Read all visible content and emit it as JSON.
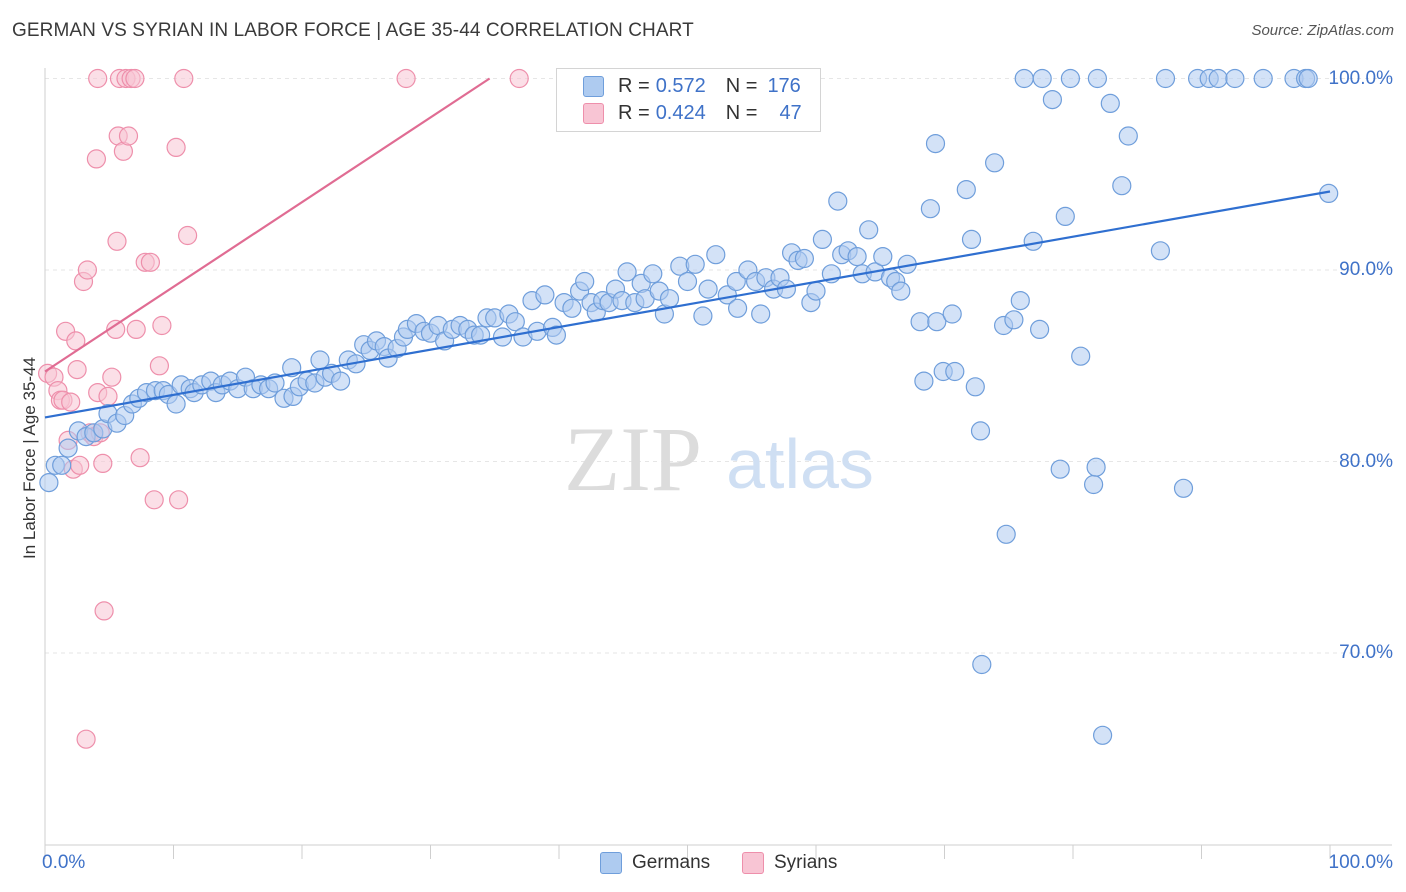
{
  "title": "GERMAN VS SYRIAN IN LABOR FORCE | AGE 35-44 CORRELATION CHART",
  "source": "Source: ZipAtlas.com",
  "watermark": {
    "zip": "ZIP",
    "atlas": "atlas"
  },
  "colors": {
    "german_fill": "#aecbf0",
    "german_stroke": "#6f9edb",
    "german_line": "#2f6fd0",
    "syrian_fill": "#f8c5d4",
    "syrian_stroke": "#ee8fab",
    "syrian_line": "#e06c93",
    "axis_text": "#3f72c8",
    "grid": "#e6e6e6"
  },
  "legend": {
    "rows": [
      {
        "r_label": "R =",
        "r_value": "0.572",
        "n_label": "N =",
        "n_value": "176"
      },
      {
        "r_label": "R =",
        "r_value": "0.424",
        "n_label": "N =",
        "n_value": "47"
      }
    ]
  },
  "bottom_legend": [
    "Germans",
    "Syrians"
  ],
  "chart_data": {
    "type": "scatter",
    "title": "GERMAN VS SYRIAN IN LABOR FORCE | AGE 35-44 CORRELATION CHART",
    "xlabel": "",
    "ylabel": "In Labor Force | Age 35-44",
    "xlim": [
      0,
      100
    ],
    "ylim": [
      61.5,
      101.5
    ],
    "x_tick_labels": {
      "left": "0.0%",
      "right": "100.0%"
    },
    "y_ticks": [
      {
        "value": 70,
        "label": "70.0%"
      },
      {
        "value": 80,
        "label": "80.0%"
      },
      {
        "value": 90,
        "label": "90.0%"
      },
      {
        "value": 100,
        "label": "100.0%"
      }
    ],
    "grid": true,
    "legend_position": "top-center",
    "series": [
      {
        "name": "Germans",
        "R": 0.572,
        "N": 176,
        "trend": {
          "x": [
            0,
            100
          ],
          "y": [
            82.3,
            94.1
          ]
        },
        "points": [
          [
            0.3,
            78.9
          ],
          [
            0.8,
            79.8
          ],
          [
            1.3,
            79.8
          ],
          [
            1.8,
            80.7
          ],
          [
            2.6,
            81.6
          ],
          [
            3.2,
            81.3
          ],
          [
            3.8,
            81.5
          ],
          [
            4.5,
            81.7
          ],
          [
            4.9,
            82.5
          ],
          [
            5.6,
            82.0
          ],
          [
            6.2,
            82.4
          ],
          [
            6.8,
            83.0
          ],
          [
            7.3,
            83.3
          ],
          [
            7.9,
            83.6
          ],
          [
            8.6,
            83.7
          ],
          [
            9.2,
            83.7
          ],
          [
            9.6,
            83.5
          ],
          [
            10.2,
            83.0
          ],
          [
            10.6,
            84.0
          ],
          [
            11.3,
            83.8
          ],
          [
            11.6,
            83.6
          ],
          [
            12.2,
            84.0
          ],
          [
            12.9,
            84.2
          ],
          [
            13.3,
            83.6
          ],
          [
            13.8,
            84.0
          ],
          [
            14.4,
            84.2
          ],
          [
            15.0,
            83.8
          ],
          [
            15.6,
            84.4
          ],
          [
            16.2,
            83.8
          ],
          [
            16.8,
            84.0
          ],
          [
            17.4,
            83.8
          ],
          [
            17.9,
            84.1
          ],
          [
            18.6,
            83.3
          ],
          [
            19.3,
            83.4
          ],
          [
            19.2,
            84.9
          ],
          [
            19.8,
            83.9
          ],
          [
            20.4,
            84.2
          ],
          [
            21.0,
            84.1
          ],
          [
            21.4,
            85.3
          ],
          [
            21.8,
            84.4
          ],
          [
            22.3,
            84.6
          ],
          [
            23.0,
            84.2
          ],
          [
            23.6,
            85.3
          ],
          [
            24.2,
            85.1
          ],
          [
            24.8,
            86.1
          ],
          [
            25.3,
            85.8
          ],
          [
            25.8,
            86.3
          ],
          [
            26.4,
            86.0
          ],
          [
            26.7,
            85.4
          ],
          [
            27.4,
            85.9
          ],
          [
            27.9,
            86.5
          ],
          [
            28.2,
            86.9
          ],
          [
            28.9,
            87.2
          ],
          [
            29.5,
            86.8
          ],
          [
            30.0,
            86.7
          ],
          [
            30.6,
            87.1
          ],
          [
            31.1,
            86.3
          ],
          [
            31.7,
            86.9
          ],
          [
            32.3,
            87.1
          ],
          [
            32.9,
            86.9
          ],
          [
            33.4,
            86.6
          ],
          [
            33.9,
            86.6
          ],
          [
            34.4,
            87.5
          ],
          [
            35.0,
            87.5
          ],
          [
            35.6,
            86.5
          ],
          [
            36.1,
            87.7
          ],
          [
            36.6,
            87.3
          ],
          [
            37.2,
            86.5
          ],
          [
            37.9,
            88.4
          ],
          [
            38.3,
            86.8
          ],
          [
            38.9,
            88.7
          ],
          [
            39.5,
            87.0
          ],
          [
            39.8,
            86.6
          ],
          [
            40.4,
            88.3
          ],
          [
            41.0,
            88.0
          ],
          [
            41.6,
            88.9
          ],
          [
            42.0,
            89.4
          ],
          [
            42.5,
            88.3
          ],
          [
            42.9,
            87.8
          ],
          [
            43.4,
            88.4
          ],
          [
            43.9,
            88.3
          ],
          [
            44.4,
            89.0
          ],
          [
            44.9,
            88.4
          ],
          [
            45.3,
            89.9
          ],
          [
            45.9,
            88.3
          ],
          [
            46.4,
            89.3
          ],
          [
            46.7,
            88.5
          ],
          [
            47.3,
            89.8
          ],
          [
            47.8,
            88.9
          ],
          [
            48.2,
            87.7
          ],
          [
            48.6,
            88.5
          ],
          [
            49.4,
            90.2
          ],
          [
            50.0,
            89.4
          ],
          [
            50.6,
            90.3
          ],
          [
            51.2,
            87.6
          ],
          [
            51.6,
            89.0
          ],
          [
            52.2,
            90.8
          ],
          [
            53.1,
            88.7
          ],
          [
            53.8,
            89.4
          ],
          [
            53.9,
            88.0
          ],
          [
            54.7,
            90.0
          ],
          [
            55.3,
            89.4
          ],
          [
            55.7,
            87.7
          ],
          [
            56.1,
            89.6
          ],
          [
            56.7,
            89.0
          ],
          [
            57.2,
            89.6
          ],
          [
            57.7,
            89.0
          ],
          [
            58.1,
            90.9
          ],
          [
            58.6,
            90.5
          ],
          [
            59.1,
            90.6
          ],
          [
            59.6,
            88.3
          ],
          [
            60.0,
            88.9
          ],
          [
            60.5,
            91.6
          ],
          [
            61.2,
            89.8
          ],
          [
            61.7,
            93.6
          ],
          [
            62.0,
            90.8
          ],
          [
            62.5,
            91.0
          ],
          [
            63.2,
            90.7
          ],
          [
            63.6,
            89.8
          ],
          [
            64.1,
            92.1
          ],
          [
            64.6,
            89.9
          ],
          [
            65.2,
            90.7
          ],
          [
            65.8,
            89.6
          ],
          [
            66.2,
            89.4
          ],
          [
            66.6,
            88.9
          ],
          [
            67.1,
            90.3
          ],
          [
            68.1,
            87.3
          ],
          [
            68.4,
            84.2
          ],
          [
            68.9,
            93.2
          ],
          [
            69.4,
            87.3
          ],
          [
            69.3,
            96.6
          ],
          [
            69.9,
            84.7
          ],
          [
            70.6,
            87.7
          ],
          [
            70.8,
            84.7
          ],
          [
            71.7,
            94.2
          ],
          [
            72.1,
            91.6
          ],
          [
            72.4,
            83.9
          ],
          [
            72.8,
            81.6
          ],
          [
            72.9,
            69.4
          ],
          [
            73.9,
            95.6
          ],
          [
            74.6,
            87.1
          ],
          [
            74.8,
            76.2
          ],
          [
            75.4,
            87.4
          ],
          [
            75.9,
            88.4
          ],
          [
            76.2,
            100.0
          ],
          [
            76.9,
            91.5
          ],
          [
            77.4,
            86.9
          ],
          [
            77.6,
            100.0
          ],
          [
            78.4,
            98.9
          ],
          [
            79.0,
            79.6
          ],
          [
            79.4,
            92.8
          ],
          [
            79.8,
            100.0
          ],
          [
            80.6,
            85.5
          ],
          [
            81.6,
            78.8
          ],
          [
            81.8,
            79.7
          ],
          [
            81.9,
            100.0
          ],
          [
            82.3,
            65.7
          ],
          [
            82.9,
            98.7
          ],
          [
            83.8,
            94.4
          ],
          [
            84.3,
            97.0
          ],
          [
            86.8,
            91.0
          ],
          [
            87.2,
            100.0
          ],
          [
            88.6,
            78.6
          ],
          [
            89.7,
            100.0
          ],
          [
            90.6,
            100.0
          ],
          [
            91.3,
            100.0
          ],
          [
            92.6,
            100.0
          ],
          [
            94.8,
            100.0
          ],
          [
            97.2,
            100.0
          ],
          [
            98.1,
            100.0
          ],
          [
            98.3,
            100.0
          ],
          [
            99.9,
            94.0
          ]
        ]
      },
      {
        "name": "Syrians",
        "R": 0.424,
        "N": 47,
        "trend": {
          "x": [
            0,
            34.6
          ],
          "y": [
            84.7,
            100.0
          ]
        },
        "points": [
          [
            0.2,
            84.6
          ],
          [
            0.7,
            84.4
          ],
          [
            1.0,
            83.7
          ],
          [
            1.2,
            83.2
          ],
          [
            1.4,
            83.2
          ],
          [
            1.6,
            86.8
          ],
          [
            1.8,
            81.1
          ],
          [
            2.0,
            83.1
          ],
          [
            2.2,
            79.6
          ],
          [
            2.4,
            86.3
          ],
          [
            2.5,
            84.8
          ],
          [
            2.7,
            79.8
          ],
          [
            3.0,
            89.4
          ],
          [
            3.2,
            65.5
          ],
          [
            3.3,
            90.0
          ],
          [
            3.5,
            81.5
          ],
          [
            3.8,
            81.3
          ],
          [
            4.0,
            95.8
          ],
          [
            4.1,
            83.6
          ],
          [
            4.3,
            81.5
          ],
          [
            4.5,
            79.9
          ],
          [
            4.6,
            72.2
          ],
          [
            4.9,
            83.4
          ],
          [
            4.1,
            100.0
          ],
          [
            5.2,
            84.4
          ],
          [
            5.5,
            86.9
          ],
          [
            5.6,
            91.5
          ],
          [
            5.7,
            97.0
          ],
          [
            5.8,
            100.0
          ],
          [
            6.1,
            96.2
          ],
          [
            6.3,
            100.0
          ],
          [
            6.5,
            97.0
          ],
          [
            6.7,
            100.0
          ],
          [
            7.0,
            100.0
          ],
          [
            7.1,
            86.9
          ],
          [
            7.4,
            80.2
          ],
          [
            7.8,
            90.4
          ],
          [
            8.2,
            90.4
          ],
          [
            8.5,
            78.0
          ],
          [
            8.9,
            85.0
          ],
          [
            9.1,
            87.1
          ],
          [
            10.2,
            96.4
          ],
          [
            10.4,
            78.0
          ],
          [
            10.8,
            100.0
          ],
          [
            11.1,
            91.8
          ],
          [
            28.1,
            100.0
          ],
          [
            36.9,
            100.0
          ]
        ]
      }
    ]
  }
}
